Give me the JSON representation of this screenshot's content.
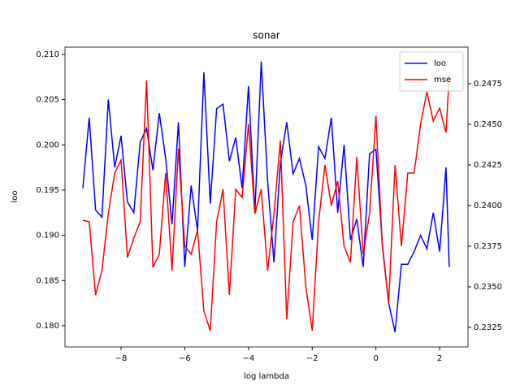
{
  "chart_data": {
    "type": "line",
    "title": "sonar",
    "xlabel": "log lambda",
    "ylabel": "loo",
    "x": [
      -9.2,
      -9.0,
      -8.8,
      -8.6,
      -8.4,
      -8.2,
      -8.0,
      -7.8,
      -7.6,
      -7.4,
      -7.2,
      -7.0,
      -6.8,
      -6.6,
      -6.4,
      -6.2,
      -6.0,
      -5.8,
      -5.6,
      -5.4,
      -5.2,
      -5.0,
      -4.8,
      -4.6,
      -4.4,
      -4.2,
      -4.0,
      -3.8,
      -3.6,
      -3.4,
      -3.2,
      -3.0,
      -2.8,
      -2.6,
      -2.4,
      -2.2,
      -2.0,
      -1.8,
      -1.6,
      -1.4,
      -1.2,
      -1.0,
      -0.8,
      -0.6,
      -0.4,
      -0.2,
      0.0,
      0.2,
      0.4,
      0.6,
      0.8,
      1.0,
      1.2,
      1.4,
      1.6,
      1.8,
      2.0,
      2.2,
      2.3
    ],
    "series": [
      {
        "name": "loo",
        "color": "#0000ff",
        "axis": "y",
        "values": [
          0.1952,
          0.203,
          0.1928,
          0.192,
          0.205,
          0.1975,
          0.201,
          0.1937,
          0.1925,
          0.2003,
          0.2018,
          0.1972,
          0.2035,
          0.1985,
          0.1912,
          0.2025,
          0.1865,
          0.1955,
          0.1905,
          0.208,
          0.1935,
          0.204,
          0.2045,
          0.1982,
          0.2008,
          0.1952,
          0.2065,
          0.1925,
          0.2092,
          0.196,
          0.187,
          0.198,
          0.2025,
          0.1968,
          0.1985,
          0.1955,
          0.1895,
          0.1998,
          0.1985,
          0.203,
          0.1925,
          0.2,
          0.1895,
          0.1918,
          0.1865,
          0.199,
          0.1995,
          0.189,
          0.1825,
          0.1793,
          0.1868,
          0.1868,
          0.1882,
          0.19,
          0.1885,
          0.1925,
          0.1882,
          0.1975,
          0.1865
        ]
      },
      {
        "name": "mse",
        "color": "#ff0000",
        "axis": "y2",
        "values": [
          0.2391,
          0.239,
          0.2345,
          0.236,
          0.2395,
          0.242,
          0.2428,
          0.2368,
          0.238,
          0.239,
          0.2477,
          0.2362,
          0.237,
          0.242,
          0.236,
          0.2435,
          0.2375,
          0.237,
          0.2385,
          0.2335,
          0.2323,
          0.239,
          0.241,
          0.2345,
          0.241,
          0.2405,
          0.245,
          0.2395,
          0.241,
          0.236,
          0.2395,
          0.244,
          0.233,
          0.239,
          0.24,
          0.235,
          0.2323,
          0.239,
          0.2425,
          0.24,
          0.2415,
          0.2375,
          0.2365,
          0.243,
          0.237,
          0.2395,
          0.2455,
          0.2375,
          0.234,
          0.2425,
          0.2375,
          0.242,
          0.242,
          0.245,
          0.247,
          0.2452,
          0.246,
          0.2445,
          0.248
        ]
      }
    ],
    "xlim": [
      -9.76,
      2.89
    ],
    "xticks": [
      {
        "value": -8,
        "label": "−8"
      },
      {
        "value": -6,
        "label": "−6"
      },
      {
        "value": -4,
        "label": "−4"
      },
      {
        "value": -2,
        "label": "−2"
      },
      0,
      2
    ],
    "ylim": [
      0.17766,
      0.2108
    ],
    "yticks": [
      {
        "value": 0.18,
        "label": "0.180"
      },
      0.185,
      {
        "value": 0.19,
        "label": "0.190"
      },
      0.195,
      {
        "value": 0.2,
        "label": "0.200"
      },
      0.205,
      {
        "value": 0.21,
        "label": "0.210"
      }
    ],
    "y2lim": [
      0.2313,
      0.24975
    ],
    "y2ticks": [
      0.2325,
      {
        "value": 0.235,
        "label": "0.2350"
      },
      0.2375,
      {
        "value": 0.24,
        "label": "0.2400"
      },
      0.2425,
      {
        "value": 0.245,
        "label": "0.2450"
      },
      0.2475
    ],
    "legend": "upper right"
  }
}
